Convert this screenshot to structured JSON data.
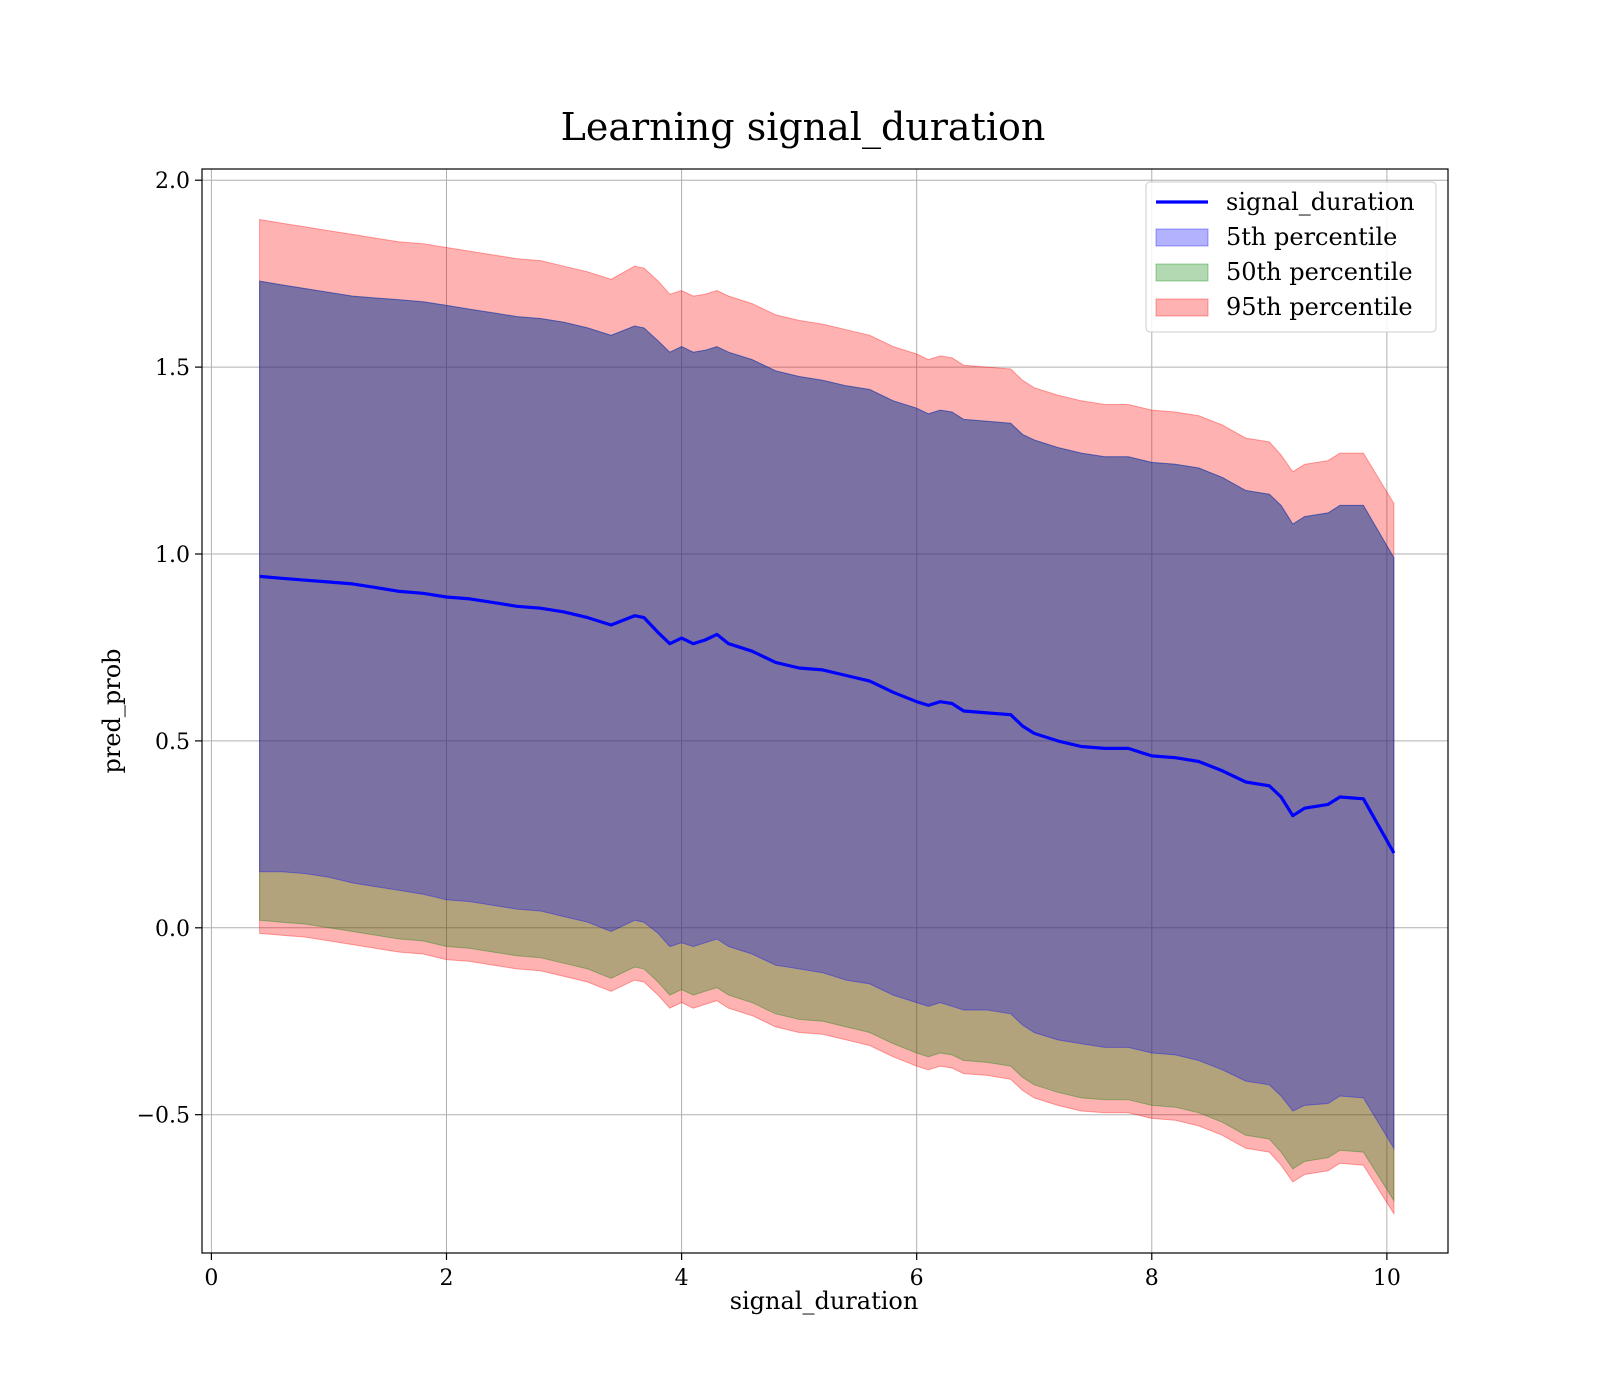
{
  "chart_data": {
    "type": "line",
    "title": "Learning signal_duration",
    "xlabel": "signal_duration",
    "ylabel": "pred_prob",
    "xlim": [
      -0.08,
      10.52
    ],
    "ylim": [
      -0.87,
      2.03
    ],
    "x_ticks": [
      {
        "value": 0,
        "label": "0"
      },
      {
        "value": 2,
        "label": "2"
      },
      {
        "value": 4,
        "label": "4"
      },
      {
        "value": 6,
        "label": "6"
      },
      {
        "value": 8,
        "label": "8"
      },
      {
        "value": 10,
        "label": "10"
      }
    ],
    "y_ticks": [
      {
        "value": -0.5,
        "label": "−0.5"
      },
      {
        "value": 0.0,
        "label": "0.0"
      },
      {
        "value": 0.5,
        "label": "0.5"
      },
      {
        "value": 1.0,
        "label": "1.0"
      },
      {
        "value": 1.5,
        "label": "1.5"
      },
      {
        "value": 2.0,
        "label": "2.0"
      }
    ],
    "grid": true,
    "legend_position": "top-right",
    "x": [
      0.41,
      0.6,
      0.8,
      1.0,
      1.2,
      1.4,
      1.6,
      1.8,
      2.0,
      2.2,
      2.4,
      2.6,
      2.8,
      3.0,
      3.2,
      3.4,
      3.6,
      3.68,
      3.8,
      3.9,
      4.0,
      4.1,
      4.2,
      4.3,
      4.4,
      4.6,
      4.8,
      5.0,
      5.2,
      5.4,
      5.6,
      5.8,
      6.0,
      6.1,
      6.2,
      6.3,
      6.4,
      6.6,
      6.8,
      6.9,
      7.0,
      7.2,
      7.4,
      7.6,
      7.8,
      8.0,
      8.2,
      8.4,
      8.6,
      8.8,
      9.0,
      9.1,
      9.2,
      9.3,
      9.5,
      9.6,
      9.8,
      10.06
    ],
    "series": [
      {
        "name": "signal_duration",
        "kind": "line",
        "color": "#0000ff",
        "values": [
          0.94,
          0.935,
          0.93,
          0.925,
          0.92,
          0.91,
          0.9,
          0.895,
          0.885,
          0.88,
          0.87,
          0.86,
          0.855,
          0.845,
          0.83,
          0.81,
          0.835,
          0.83,
          0.79,
          0.76,
          0.775,
          0.76,
          0.77,
          0.785,
          0.76,
          0.74,
          0.71,
          0.695,
          0.69,
          0.675,
          0.66,
          0.63,
          0.605,
          0.595,
          0.605,
          0.6,
          0.58,
          0.575,
          0.57,
          0.54,
          0.52,
          0.5,
          0.485,
          0.48,
          0.48,
          0.46,
          0.455,
          0.445,
          0.42,
          0.39,
          0.38,
          0.35,
          0.3,
          0.32,
          0.33,
          0.35,
          0.345,
          0.2
        ]
      },
      {
        "name": "5th percentile",
        "kind": "band",
        "color": "#0000ff",
        "lower": [
          0.15,
          0.15,
          0.145,
          0.135,
          0.12,
          0.11,
          0.1,
          0.09,
          0.075,
          0.07,
          0.06,
          0.05,
          0.045,
          0.03,
          0.015,
          -0.01,
          0.02,
          0.015,
          -0.015,
          -0.05,
          -0.04,
          -0.05,
          -0.04,
          -0.03,
          -0.05,
          -0.07,
          -0.1,
          -0.11,
          -0.12,
          -0.14,
          -0.15,
          -0.18,
          -0.2,
          -0.21,
          -0.2,
          -0.21,
          -0.22,
          -0.22,
          -0.23,
          -0.26,
          -0.28,
          -0.3,
          -0.31,
          -0.32,
          -0.32,
          -0.335,
          -0.34,
          -0.355,
          -0.38,
          -0.41,
          -0.42,
          -0.45,
          -0.49,
          -0.475,
          -0.47,
          -0.45,
          -0.455,
          -0.59
        ],
        "upper": [
          1.73,
          1.72,
          1.71,
          1.7,
          1.69,
          1.685,
          1.68,
          1.675,
          1.665,
          1.655,
          1.645,
          1.635,
          1.63,
          1.62,
          1.605,
          1.585,
          1.61,
          1.605,
          1.57,
          1.54,
          1.555,
          1.54,
          1.545,
          1.555,
          1.54,
          1.52,
          1.49,
          1.475,
          1.465,
          1.45,
          1.44,
          1.41,
          1.39,
          1.375,
          1.385,
          1.38,
          1.36,
          1.355,
          1.35,
          1.32,
          1.305,
          1.285,
          1.27,
          1.26,
          1.26,
          1.245,
          1.24,
          1.23,
          1.205,
          1.17,
          1.16,
          1.13,
          1.08,
          1.1,
          1.11,
          1.13,
          1.13,
          0.99
        ]
      },
      {
        "name": "50th percentile",
        "kind": "band",
        "color": "#008000",
        "lower": [
          0.02,
          0.015,
          0.01,
          0.0,
          -0.01,
          -0.02,
          -0.03,
          -0.035,
          -0.05,
          -0.055,
          -0.065,
          -0.075,
          -0.08,
          -0.095,
          -0.11,
          -0.135,
          -0.105,
          -0.11,
          -0.145,
          -0.18,
          -0.165,
          -0.18,
          -0.17,
          -0.16,
          -0.18,
          -0.2,
          -0.23,
          -0.245,
          -0.25,
          -0.265,
          -0.28,
          -0.31,
          -0.335,
          -0.345,
          -0.335,
          -0.34,
          -0.355,
          -0.36,
          -0.37,
          -0.4,
          -0.42,
          -0.44,
          -0.455,
          -0.46,
          -0.46,
          -0.475,
          -0.48,
          -0.495,
          -0.52,
          -0.555,
          -0.565,
          -0.6,
          -0.645,
          -0.625,
          -0.615,
          -0.595,
          -0.6,
          -0.73
        ]
      },
      {
        "name": "95th percentile",
        "kind": "band",
        "color": "#ff0000",
        "lower": [
          -0.015,
          -0.02,
          -0.025,
          -0.035,
          -0.045,
          -0.055,
          -0.065,
          -0.07,
          -0.085,
          -0.09,
          -0.1,
          -0.11,
          -0.115,
          -0.13,
          -0.145,
          -0.17,
          -0.14,
          -0.145,
          -0.18,
          -0.215,
          -0.2,
          -0.215,
          -0.205,
          -0.195,
          -0.215,
          -0.235,
          -0.265,
          -0.28,
          -0.285,
          -0.3,
          -0.315,
          -0.345,
          -0.37,
          -0.38,
          -0.37,
          -0.375,
          -0.39,
          -0.395,
          -0.405,
          -0.435,
          -0.455,
          -0.475,
          -0.49,
          -0.495,
          -0.495,
          -0.51,
          -0.515,
          -0.53,
          -0.555,
          -0.59,
          -0.6,
          -0.635,
          -0.68,
          -0.66,
          -0.65,
          -0.63,
          -0.635,
          -0.765
        ],
        "upper": [
          1.895,
          1.885,
          1.875,
          1.865,
          1.855,
          1.845,
          1.835,
          1.83,
          1.82,
          1.81,
          1.8,
          1.79,
          1.785,
          1.77,
          1.755,
          1.735,
          1.77,
          1.765,
          1.73,
          1.695,
          1.705,
          1.69,
          1.695,
          1.705,
          1.69,
          1.67,
          1.64,
          1.625,
          1.615,
          1.6,
          1.585,
          1.555,
          1.535,
          1.52,
          1.53,
          1.525,
          1.505,
          1.5,
          1.495,
          1.465,
          1.445,
          1.425,
          1.41,
          1.4,
          1.4,
          1.385,
          1.38,
          1.37,
          1.345,
          1.31,
          1.3,
          1.265,
          1.22,
          1.24,
          1.25,
          1.27,
          1.27,
          1.135
        ]
      }
    ]
  }
}
